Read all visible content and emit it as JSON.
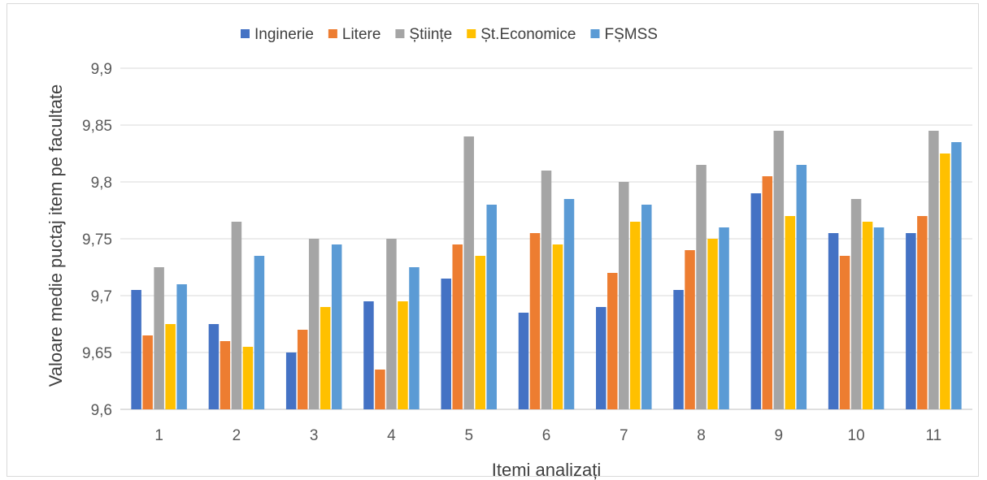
{
  "chart_data": {
    "type": "bar",
    "title": "",
    "xlabel": "Itemi analizați",
    "ylabel": "Valoare medie puctaj item pe facultate",
    "categories": [
      "1",
      "2",
      "3",
      "4",
      "5",
      "6",
      "7",
      "8",
      "9",
      "10",
      "11"
    ],
    "ylim": [
      9.6,
      9.9
    ],
    "yticks": [
      "9,6",
      "9,65",
      "9,7",
      "9,75",
      "9,8",
      "9,85",
      "9,9"
    ],
    "ytick_values": [
      9.6,
      9.65,
      9.7,
      9.75,
      9.8,
      9.85,
      9.9
    ],
    "grid": true,
    "legend_position": "top",
    "series": [
      {
        "name": "Inginerie",
        "color": "#4472c4",
        "values": [
          9.705,
          9.675,
          9.65,
          9.695,
          9.715,
          9.685,
          9.69,
          9.705,
          9.79,
          9.755,
          9.755
        ]
      },
      {
        "name": "Litere",
        "color": "#ed7d31",
        "values": [
          9.665,
          9.66,
          9.67,
          9.635,
          9.745,
          9.755,
          9.72,
          9.74,
          9.805,
          9.735,
          9.77
        ]
      },
      {
        "name": "Științe",
        "color": "#a5a5a5",
        "values": [
          9.725,
          9.765,
          9.75,
          9.75,
          9.84,
          9.81,
          9.8,
          9.815,
          9.845,
          9.785,
          9.845
        ]
      },
      {
        "name": "Șt.Economice",
        "color": "#ffc000",
        "values": [
          9.675,
          9.655,
          9.69,
          9.695,
          9.735,
          9.745,
          9.765,
          9.75,
          9.77,
          9.765,
          9.825
        ]
      },
      {
        "name": "FȘMSS",
        "color": "#5b9bd5",
        "values": [
          9.71,
          9.735,
          9.745,
          9.725,
          9.78,
          9.785,
          9.78,
          9.76,
          9.815,
          9.76,
          9.835
        ]
      }
    ]
  }
}
